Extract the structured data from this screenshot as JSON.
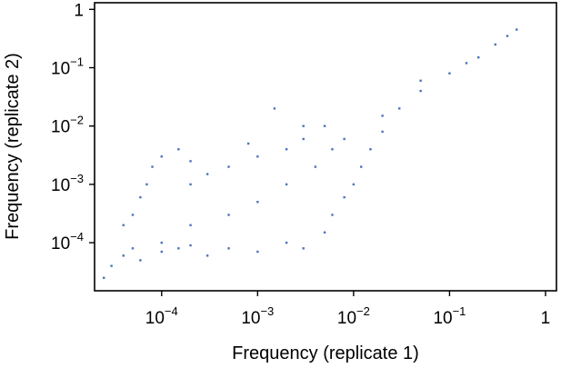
{
  "chart_data": {
    "type": "scatter",
    "title": "",
    "xlabel": "Frequency (replicate 1)",
    "ylabel": "Frequency (replicate 2)",
    "x_scale": "log",
    "y_scale": "log",
    "xlim": [
      2e-05,
      1.3
    ],
    "ylim": [
      1.5e-05,
      1.3
    ],
    "grid": false,
    "marker_color": "#4a74b8",
    "x_ticks": [
      {
        "value": 0.0001,
        "base": "10",
        "exp": "−4"
      },
      {
        "value": 0.001,
        "base": "10",
        "exp": "−3"
      },
      {
        "value": 0.01,
        "base": "10",
        "exp": "−2"
      },
      {
        "value": 0.1,
        "base": "10",
        "exp": "−1"
      },
      {
        "value": 1,
        "base": "1",
        "exp": ""
      }
    ],
    "y_ticks": [
      {
        "value": 0.0001,
        "base": "10",
        "exp": "−4"
      },
      {
        "value": 0.001,
        "base": "10",
        "exp": "−3"
      },
      {
        "value": 0.01,
        "base": "10",
        "exp": "−2"
      },
      {
        "value": 0.1,
        "base": "10",
        "exp": "−1"
      },
      {
        "value": 1,
        "base": "1",
        "exp": ""
      }
    ],
    "series": [
      {
        "points": [
          [
            2.5e-05,
            2.5e-05
          ],
          [
            3e-05,
            4e-05
          ],
          [
            4e-05,
            6e-05
          ],
          [
            5e-05,
            8e-05
          ],
          [
            4e-05,
            0.0002
          ],
          [
            5e-05,
            0.0003
          ],
          [
            6e-05,
            0.0006
          ],
          [
            7e-05,
            0.001
          ],
          [
            8e-05,
            0.002
          ],
          [
            0.0001,
            0.003
          ],
          [
            0.00015,
            0.004
          ],
          [
            0.0002,
            0.0025
          ],
          [
            6e-05,
            5e-05
          ],
          [
            0.0001,
            7e-05
          ],
          [
            0.00015,
            8e-05
          ],
          [
            0.0002,
            9e-05
          ],
          [
            0.0003,
            6e-05
          ],
          [
            0.0005,
            8e-05
          ],
          [
            0.001,
            7e-05
          ],
          [
            0.002,
            0.0001
          ],
          [
            0.003,
            8e-05
          ],
          [
            0.005,
            0.00015
          ],
          [
            0.006,
            0.0003
          ],
          [
            0.008,
            0.0006
          ],
          [
            0.01,
            0.001
          ],
          [
            0.012,
            0.002
          ],
          [
            0.015,
            0.004
          ],
          [
            0.02,
            0.008
          ],
          [
            0.03,
            0.02
          ],
          [
            0.05,
            0.04
          ],
          [
            0.1,
            0.08
          ],
          [
            0.2,
            0.15
          ],
          [
            0.3,
            0.25
          ],
          [
            0.4,
            0.35
          ],
          [
            0.5,
            0.45
          ],
          [
            0.005,
            0.01
          ],
          [
            0.003,
            0.006
          ],
          [
            0.002,
            0.004
          ],
          [
            0.001,
            0.003
          ],
          [
            0.0005,
            0.002
          ],
          [
            0.0003,
            0.0015
          ],
          [
            0.0002,
            0.001
          ],
          [
            0.001,
            0.0005
          ],
          [
            0.0005,
            0.0003
          ],
          [
            0.0002,
            0.0002
          ],
          [
            0.0001,
            0.0001
          ],
          [
            0.002,
            0.001
          ],
          [
            0.004,
            0.002
          ],
          [
            0.006,
            0.004
          ],
          [
            0.008,
            0.006
          ],
          [
            0.0015,
            0.02
          ],
          [
            0.003,
            0.01
          ],
          [
            0.0008,
            0.005
          ],
          [
            0.02,
            0.015
          ],
          [
            0.05,
            0.06
          ],
          [
            0.15,
            0.12
          ]
        ]
      }
    ]
  }
}
